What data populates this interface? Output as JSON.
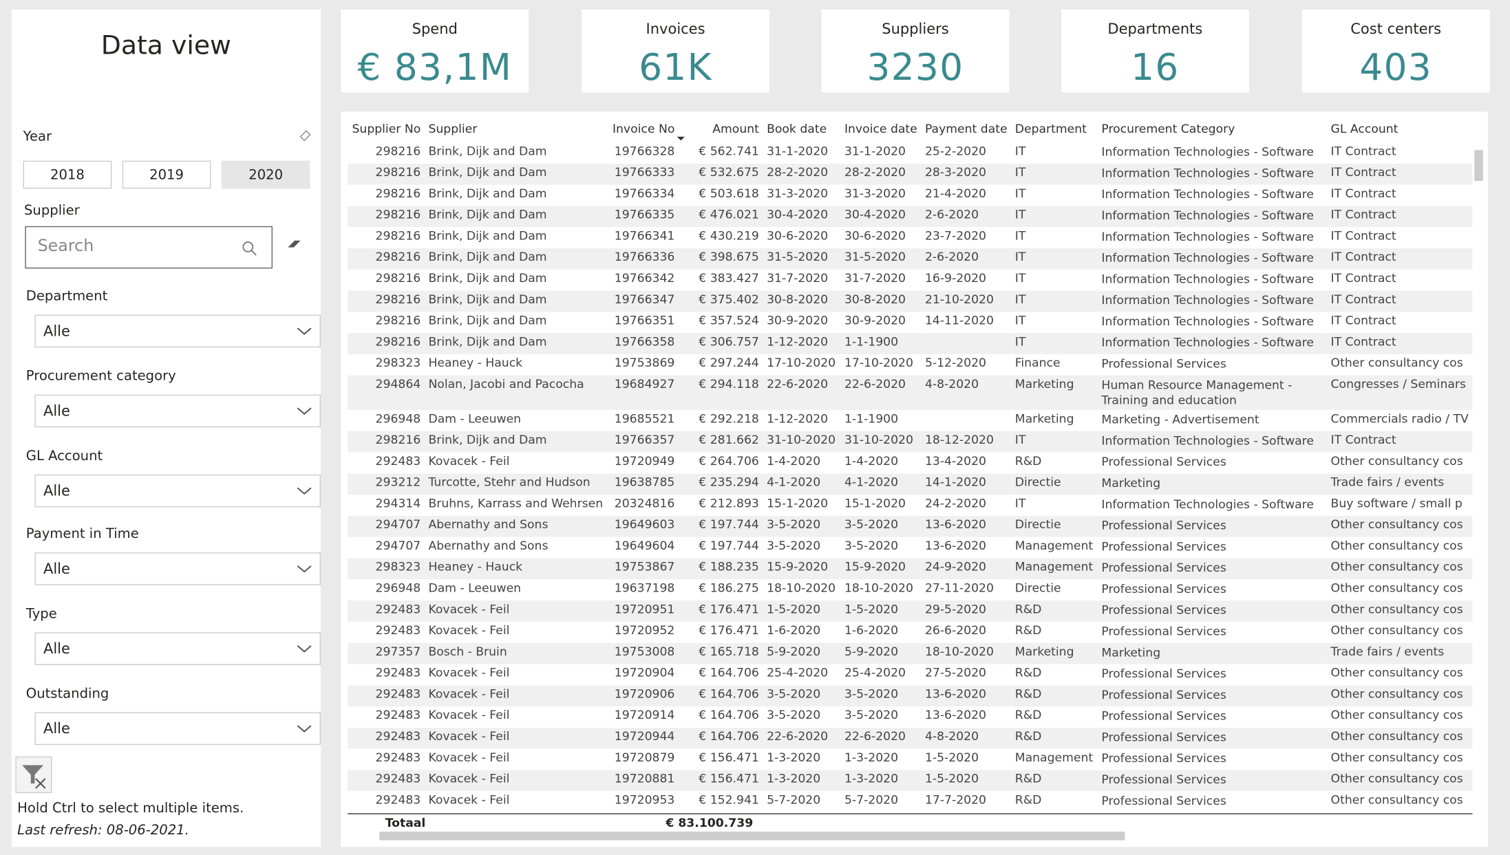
{
  "header": {
    "title": "Data view"
  },
  "kpis": [
    {
      "label": "Spend",
      "value": "€ 83,1M"
    },
    {
      "label": "Invoices",
      "value": "61K"
    },
    {
      "label": "Suppliers",
      "value": "3230"
    },
    {
      "label": "Departments",
      "value": "16"
    },
    {
      "label": "Cost centers",
      "value": "403"
    }
  ],
  "filters": {
    "year": {
      "label": "Year",
      "options": [
        "2018",
        "2019",
        "2020"
      ]
    },
    "supplier": {
      "label": "Supplier",
      "placeholder": "Search"
    },
    "dropdowns": [
      {
        "label": "Department",
        "value": "Alle"
      },
      {
        "label": "Procurement category",
        "value": "Alle"
      },
      {
        "label": "GL Account",
        "value": "Alle"
      },
      {
        "label": "Payment in Time",
        "value": "Alle"
      },
      {
        "label": "Type",
        "value": "Alle"
      },
      {
        "label": "Outstanding",
        "value": "Alle"
      }
    ]
  },
  "notes": {
    "hint": "Hold Ctrl to select multiple items.",
    "refresh": "Last refresh: 08-06-2021."
  },
  "table": {
    "columns": [
      "Supplier No",
      "Supplier",
      "Invoice No",
      "Amount",
      "Book date",
      "Invoice date",
      "Payment date",
      "Department",
      "Procurement Category",
      "GL Account"
    ],
    "rows": [
      [
        "298216",
        "Brink, Dijk and Dam",
        "19766328",
        "€ 562.741",
        "31-1-2020",
        "31-1-2020",
        "25-2-2020",
        "IT",
        "Information Technologies - Software",
        "IT Contract"
      ],
      [
        "298216",
        "Brink, Dijk and Dam",
        "19766333",
        "€ 532.675",
        "28-2-2020",
        "28-2-2020",
        "28-3-2020",
        "IT",
        "Information Technologies - Software",
        "IT Contract"
      ],
      [
        "298216",
        "Brink, Dijk and Dam",
        "19766334",
        "€ 503.618",
        "31-3-2020",
        "31-3-2020",
        "21-4-2020",
        "IT",
        "Information Technologies - Software",
        "IT Contract"
      ],
      [
        "298216",
        "Brink, Dijk and Dam",
        "19766335",
        "€ 476.021",
        "30-4-2020",
        "30-4-2020",
        "2-6-2020",
        "IT",
        "Information Technologies - Software",
        "IT Contract"
      ],
      [
        "298216",
        "Brink, Dijk and Dam",
        "19766341",
        "€ 430.219",
        "30-6-2020",
        "30-6-2020",
        "23-7-2020",
        "IT",
        "Information Technologies - Software",
        "IT Contract"
      ],
      [
        "298216",
        "Brink, Dijk and Dam",
        "19766336",
        "€ 398.675",
        "31-5-2020",
        "31-5-2020",
        "2-6-2020",
        "IT",
        "Information Technologies - Software",
        "IT Contract"
      ],
      [
        "298216",
        "Brink, Dijk and Dam",
        "19766342",
        "€ 383.427",
        "31-7-2020",
        "31-7-2020",
        "16-9-2020",
        "IT",
        "Information Technologies - Software",
        "IT Contract"
      ],
      [
        "298216",
        "Brink, Dijk and Dam",
        "19766347",
        "€ 375.402",
        "30-8-2020",
        "30-8-2020",
        "21-10-2020",
        "IT",
        "Information Technologies - Software",
        "IT Contract"
      ],
      [
        "298216",
        "Brink, Dijk and Dam",
        "19766351",
        "€ 357.524",
        "30-9-2020",
        "30-9-2020",
        "14-11-2020",
        "IT",
        "Information Technologies - Software",
        "IT Contract"
      ],
      [
        "298216",
        "Brink, Dijk and Dam",
        "19766358",
        "€ 306.757",
        "1-12-2020",
        "1-1-1900",
        null,
        "IT",
        "Information Technologies - Software",
        "IT Contract"
      ],
      [
        "298323",
        "Heaney - Hauck",
        "19753869",
        "€ 297.244",
        "17-10-2020",
        "17-10-2020",
        "5-12-2020",
        "Finance",
        "Professional Services",
        "Other consultancy cos"
      ],
      [
        "294864",
        "Nolan, Jacobi and Pacocha",
        "19684927",
        "€ 294.118",
        "22-6-2020",
        "22-6-2020",
        "4-8-2020",
        "Marketing",
        "Human Resource Management - Training and education",
        "Congresses / Seminars"
      ],
      [
        "296948",
        "Dam - Leeuwen",
        "19685521",
        "€ 292.218",
        "1-12-2020",
        "1-1-1900",
        null,
        "Marketing",
        "Marketing - Advertisement",
        "Commercials radio / TV"
      ],
      [
        "298216",
        "Brink, Dijk and Dam",
        "19766357",
        "€ 281.662",
        "31-10-2020",
        "31-10-2020",
        "18-12-2020",
        "IT",
        "Information Technologies - Software",
        "IT Contract"
      ],
      [
        "292483",
        "Kovacek - Feil",
        "19720949",
        "€ 264.706",
        "1-4-2020",
        "1-4-2020",
        "13-4-2020",
        "R&D",
        "Professional Services",
        "Other consultancy cos"
      ],
      [
        "293212",
        "Turcotte, Stehr and Hudson",
        "19638785",
        "€ 235.294",
        "4-1-2020",
        "4-1-2020",
        "14-1-2020",
        "Directie",
        "Marketing",
        "Trade fairs / events"
      ],
      [
        "294314",
        "Bruhns, Karrass and Wehrsen",
        "20324816",
        "€ 212.893",
        "15-1-2020",
        "15-1-2020",
        "24-2-2020",
        "IT",
        "Information Technologies - Software",
        "Buy software / small p"
      ],
      [
        "294707",
        "Abernathy and Sons",
        "19649603",
        "€ 197.744",
        "3-5-2020",
        "3-5-2020",
        "13-6-2020",
        "Directie",
        "Professional Services",
        "Other consultancy cos"
      ],
      [
        "294707",
        "Abernathy and Sons",
        "19649604",
        "€ 197.744",
        "3-5-2020",
        "3-5-2020",
        "13-6-2020",
        "Management",
        "Professional Services",
        "Other consultancy cos"
      ],
      [
        "298323",
        "Heaney - Hauck",
        "19753867",
        "€ 188.235",
        "15-9-2020",
        "15-9-2020",
        "24-9-2020",
        "Management",
        "Professional Services",
        "Other consultancy cos"
      ],
      [
        "296948",
        "Dam - Leeuwen",
        "19637198",
        "€ 186.275",
        "18-10-2020",
        "18-10-2020",
        "27-11-2020",
        "Directie",
        "Professional Services",
        "Other consultancy cos"
      ],
      [
        "292483",
        "Kovacek - Feil",
        "19720951",
        "€ 176.471",
        "1-5-2020",
        "1-5-2020",
        "29-5-2020",
        "R&D",
        "Professional Services",
        "Other consultancy cos"
      ],
      [
        "292483",
        "Kovacek - Feil",
        "19720952",
        "€ 176.471",
        "1-6-2020",
        "1-6-2020",
        "26-6-2020",
        "R&D",
        "Professional Services",
        "Other consultancy cos"
      ],
      [
        "297357",
        "Bosch - Bruin",
        "19753008",
        "€ 165.718",
        "5-9-2020",
        "5-9-2020",
        "18-10-2020",
        "Marketing",
        "Marketing",
        "Trade fairs / events"
      ],
      [
        "292483",
        "Kovacek - Feil",
        "19720904",
        "€ 164.706",
        "25-4-2020",
        "25-4-2020",
        "27-5-2020",
        "R&D",
        "Professional Services",
        "Other consultancy cos"
      ],
      [
        "292483",
        "Kovacek - Feil",
        "19720906",
        "€ 164.706",
        "3-5-2020",
        "3-5-2020",
        "13-6-2020",
        "R&D",
        "Professional Services",
        "Other consultancy cos"
      ],
      [
        "292483",
        "Kovacek - Feil",
        "19720914",
        "€ 164.706",
        "3-5-2020",
        "3-5-2020",
        "13-6-2020",
        "R&D",
        "Professional Services",
        "Other consultancy cos"
      ],
      [
        "292483",
        "Kovacek - Feil",
        "19720944",
        "€ 164.706",
        "22-6-2020",
        "22-6-2020",
        "4-8-2020",
        "R&D",
        "Professional Services",
        "Other consultancy cos"
      ],
      [
        "292483",
        "Kovacek - Feil",
        "19720879",
        "€ 156.471",
        "1-3-2020",
        "1-3-2020",
        "1-5-2020",
        "Management",
        "Professional Services",
        "Other consultancy cos"
      ],
      [
        "292483",
        "Kovacek - Feil",
        "19720881",
        "€ 156.471",
        "1-3-2020",
        "1-3-2020",
        "1-5-2020",
        "R&D",
        "Professional Services",
        "Other consultancy cos"
      ],
      [
        "292483",
        "Kovacek - Feil",
        "19720953",
        "€ 152.941",
        "5-7-2020",
        "5-7-2020",
        "17-7-2020",
        "R&D",
        "Professional Services",
        "Other consultancy cos"
      ]
    ],
    "total": {
      "label": "Totaal",
      "value": "€ 83.100.739"
    }
  }
}
